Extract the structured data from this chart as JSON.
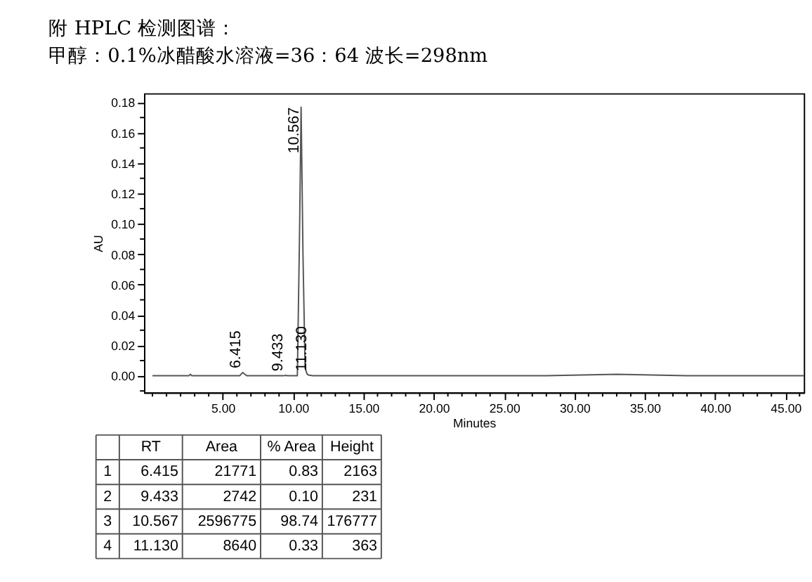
{
  "chart_data": {
    "type": "line",
    "title": "附 HPLC 检测图谱：",
    "subtitle": "甲醇：0.1%冰醋酸水溶液=36：64 波长=298nm",
    "xlabel": "Minutes",
    "ylabel": "AU",
    "xlim": [
      -0.6,
      46.3
    ],
    "ylim": [
      -0.011,
      0.186
    ],
    "xticks": [
      {
        "value": 0,
        "label": null
      },
      {
        "value": 1,
        "label": null
      },
      {
        "value": 2,
        "label": null
      },
      {
        "value": 3,
        "label": null
      },
      {
        "value": 4,
        "label": null
      },
      {
        "value": 5,
        "label": "5.00"
      },
      {
        "value": 6,
        "label": null
      },
      {
        "value": 7,
        "label": null
      },
      {
        "value": 8,
        "label": null
      },
      {
        "value": 9,
        "label": null
      },
      {
        "value": 10,
        "label": "10.00"
      },
      {
        "value": 11,
        "label": null
      },
      {
        "value": 12,
        "label": null
      },
      {
        "value": 13,
        "label": null
      },
      {
        "value": 14,
        "label": null
      },
      {
        "value": 15,
        "label": "15.00"
      },
      {
        "value": 16,
        "label": null
      },
      {
        "value": 17,
        "label": null
      },
      {
        "value": 18,
        "label": null
      },
      {
        "value": 19,
        "label": null
      },
      {
        "value": 20,
        "label": "20.00"
      },
      {
        "value": 21,
        "label": null
      },
      {
        "value": 22,
        "label": null
      },
      {
        "value": 23,
        "label": null
      },
      {
        "value": 24,
        "label": null
      },
      {
        "value": 25,
        "label": "25.00"
      },
      {
        "value": 26,
        "label": null
      },
      {
        "value": 27,
        "label": null
      },
      {
        "value": 28,
        "label": null
      },
      {
        "value": 29,
        "label": null
      },
      {
        "value": 30,
        "label": "30.00"
      },
      {
        "value": 31,
        "label": null
      },
      {
        "value": 32,
        "label": null
      },
      {
        "value": 33,
        "label": null
      },
      {
        "value": 34,
        "label": null
      },
      {
        "value": 35,
        "label": "35.00"
      },
      {
        "value": 36,
        "label": null
      },
      {
        "value": 37,
        "label": null
      },
      {
        "value": 38,
        "label": null
      },
      {
        "value": 39,
        "label": null
      },
      {
        "value": 40,
        "label": "40.00"
      },
      {
        "value": 41,
        "label": null
      },
      {
        "value": 42,
        "label": null
      },
      {
        "value": 43,
        "label": null
      },
      {
        "value": 44,
        "label": null
      },
      {
        "value": 45,
        "label": "45.00"
      },
      {
        "value": 46,
        "label": null
      }
    ],
    "yticks": [
      {
        "value": -0.01,
        "label": null
      },
      {
        "value": 0,
        "label": "0.00"
      },
      {
        "value": 0.01,
        "label": null
      },
      {
        "value": 0.02,
        "label": "0.02"
      },
      {
        "value": 0.03,
        "label": null
      },
      {
        "value": 0.04,
        "label": "0.04"
      },
      {
        "value": 0.05,
        "label": null
      },
      {
        "value": 0.06,
        "label": "0.06"
      },
      {
        "value": 0.07,
        "label": null
      },
      {
        "value": 0.08,
        "label": "0.08"
      },
      {
        "value": 0.09,
        "label": null
      },
      {
        "value": 0.1,
        "label": "0.10"
      },
      {
        "value": 0.11,
        "label": null
      },
      {
        "value": 0.12,
        "label": "0.12"
      },
      {
        "value": 0.13,
        "label": null
      },
      {
        "value": 0.14,
        "label": "0.14"
      },
      {
        "value": 0.15,
        "label": null
      },
      {
        "value": 0.16,
        "label": "0.16"
      },
      {
        "value": 0.17,
        "label": null
      },
      {
        "value": 0.18,
        "label": "0.18"
      }
    ],
    "x": [
      0,
      2.6,
      2.7,
      2.8,
      6.2,
      6.415,
      6.7,
      9.3,
      9.433,
      9.6,
      10.3,
      10.45,
      10.567,
      10.7,
      10.85,
      11.0,
      11.13,
      11.4,
      20,
      28,
      33,
      38,
      46.3
    ],
    "series": [
      {
        "color": "#555555",
        "values": [
          0,
          0,
          0.001,
          0,
          0,
          0.002163,
          0,
          0,
          0.000231,
          0,
          0,
          0.09,
          0.176777,
          0.08,
          0.005,
          0.001,
          0.000363,
          0,
          0,
          0,
          0.001,
          0,
          0
        ]
      }
    ],
    "grid": false,
    "legend": false,
    "marker": "none",
    "line_style": "solid",
    "annotations": [
      {
        "text": "6.415",
        "x": 6.415,
        "y": 0.002163
      },
      {
        "text": "9.433",
        "x": 9.433,
        "y": 0.000231
      },
      {
        "text": "10.567",
        "x": 10.567,
        "y": 0.176777
      },
      {
        "text": "11.130",
        "x": 11.13,
        "y": 0.000363
      },
      "RT",
      "Area",
      "% Area",
      "Height",
      "1",
      "6.415",
      "21771",
      "0.83",
      "2163",
      "2",
      "9.433",
      "2742",
      "0.10",
      "231",
      "3",
      "10.567",
      "2596775",
      "98.74",
      "176777",
      "4",
      "11.130",
      "8640",
      "0.33",
      "363"
    ]
  }
}
